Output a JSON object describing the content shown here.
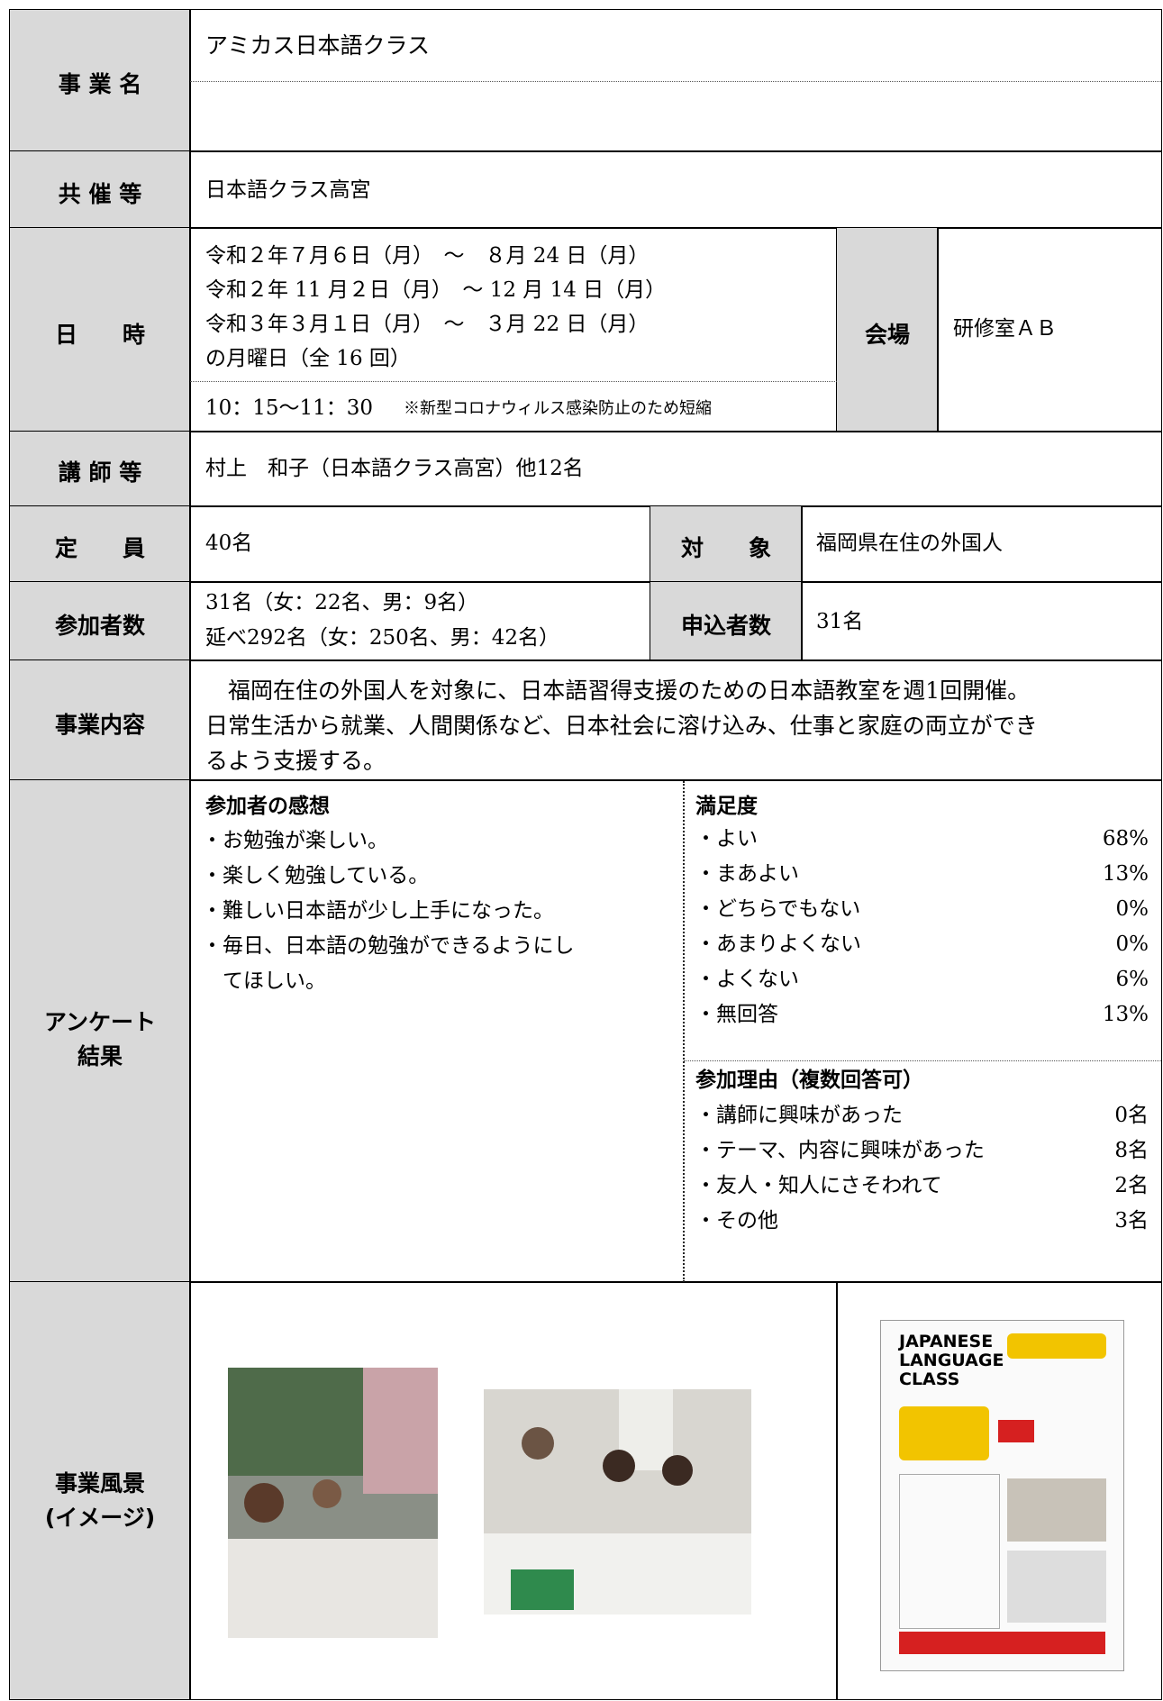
{
  "table": {
    "event_name": {
      "label": "事 業 名",
      "value": "アミカス日本語クラス"
    },
    "co_host": {
      "label": "共 催 等",
      "value": "日本語クラス高宮"
    },
    "datetime": {
      "label": "日　　時",
      "dates": [
        "令和２年７月６日（月）　～　８月 24 日（月）",
        "令和２年 11 月２日（月）　～ 12 月 14 日（月）",
        "令和３年３月１日（月）　～　３月 22 日（月）",
        "の月曜日（全 16 回）"
      ],
      "time": "10：15〜11：30",
      "note": "※新型コロナウィルス感染防止のため短縮",
      "venue_label": "会場",
      "venue": "研修室ＡＢ"
    },
    "instructor": {
      "label": "講 師 等",
      "value": "村上　和子（日本語クラス高宮）他12名"
    },
    "capacity": {
      "label": "定　　員",
      "value": "40名",
      "target_label": "対　　象",
      "target": "福岡県在住の外国人"
    },
    "participants": {
      "label": "参加者数",
      "lines": [
        "31名（女：22名、男：9名）",
        "延べ292名（女：250名、男：42名）"
      ],
      "applicants_label": "申込者数",
      "applicants": "31名"
    },
    "content": {
      "label": "事業内容",
      "lines": [
        "　福岡在住の外国人を対象に、日本語習得支援のための日本語教室を週1回開催。",
        "日常生活から就業、人間関係など、日本社会に溶け込み、仕事と家庭の両立ができ",
        "るよう支援する。"
      ]
    },
    "survey": {
      "label": [
        "アンケート",
        "結果"
      ],
      "impressions": {
        "title": "参加者の感想",
        "items": [
          "・お勉強が楽しい。",
          "・楽しく勉強している。",
          "・難しい日本語が少し上手になった。",
          "・毎日、日本語の勉強ができるようにし",
          "　てほしい。"
        ]
      },
      "satisfaction": {
        "title": "満足度",
        "items": [
          [
            "・よい",
            "68%"
          ],
          [
            "・まあよい",
            "13%"
          ],
          [
            "・どちらでもない",
            "0%"
          ],
          [
            "・あまりよくない",
            "0%"
          ],
          [
            "・よくない",
            "6%"
          ],
          [
            "・無回答",
            "13%"
          ]
        ]
      },
      "reasons": {
        "title": "参加理由（複数回答可）",
        "items": [
          [
            "・講師に興味があった",
            "0名"
          ],
          [
            "・テーマ、内容に興味があった",
            "8名"
          ],
          [
            "・友人・知人にさそわれて",
            "2名"
          ],
          [
            "・その他",
            "3名"
          ]
        ]
      }
    },
    "scene": {
      "label": [
        "事業風景",
        "(イメージ)"
      ],
      "poster_title": [
        "JAPANESE",
        "LANGUAGE",
        "CLASS"
      ]
    }
  }
}
